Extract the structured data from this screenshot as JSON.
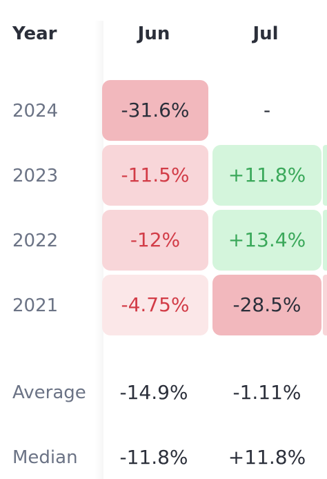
{
  "header": {
    "year_label": "Year",
    "months": [
      "Jun",
      "Jul"
    ]
  },
  "rows": [
    {
      "year": "2024",
      "cells": [
        {
          "text": "-31.6%",
          "bg": "#f2b8bd",
          "fg": "#2b2f3a"
        },
        {
          "text": "-",
          "bg": "transparent",
          "fg": "#2b2f3a"
        }
      ]
    },
    {
      "year": "2023",
      "cells": [
        {
          "text": "-11.5%",
          "bg": "#f8d6d9",
          "fg": "#d23c47"
        },
        {
          "text": "+11.8%",
          "bg": "#d4f5dc",
          "fg": "#3aa85a"
        }
      ]
    },
    {
      "year": "2022",
      "cells": [
        {
          "text": "-12%",
          "bg": "#f8d6d9",
          "fg": "#d23c47"
        },
        {
          "text": "+13.4%",
          "bg": "#d4f5dc",
          "fg": "#3aa85a"
        }
      ]
    },
    {
      "year": "2021",
      "cells": [
        {
          "text": "-4.75%",
          "bg": "#fbe7e8",
          "fg": "#d23c47"
        },
        {
          "text": "-28.5%",
          "bg": "#f2b8bd",
          "fg": "#2b2f3a"
        }
      ]
    }
  ],
  "summary": {
    "average": {
      "label": "Average",
      "values": [
        "-14.9%",
        "-1.11%"
      ]
    },
    "median": {
      "label": "Median",
      "values": [
        "-11.8%",
        "+11.8%"
      ]
    }
  },
  "colors": {
    "label": "#6b7385",
    "header": "#2b2f3a",
    "neg_strong": "#f2b8bd",
    "neg_mid": "#f8d6d9",
    "neg_light": "#fbe7e8",
    "pos_mid": "#d4f5dc"
  }
}
